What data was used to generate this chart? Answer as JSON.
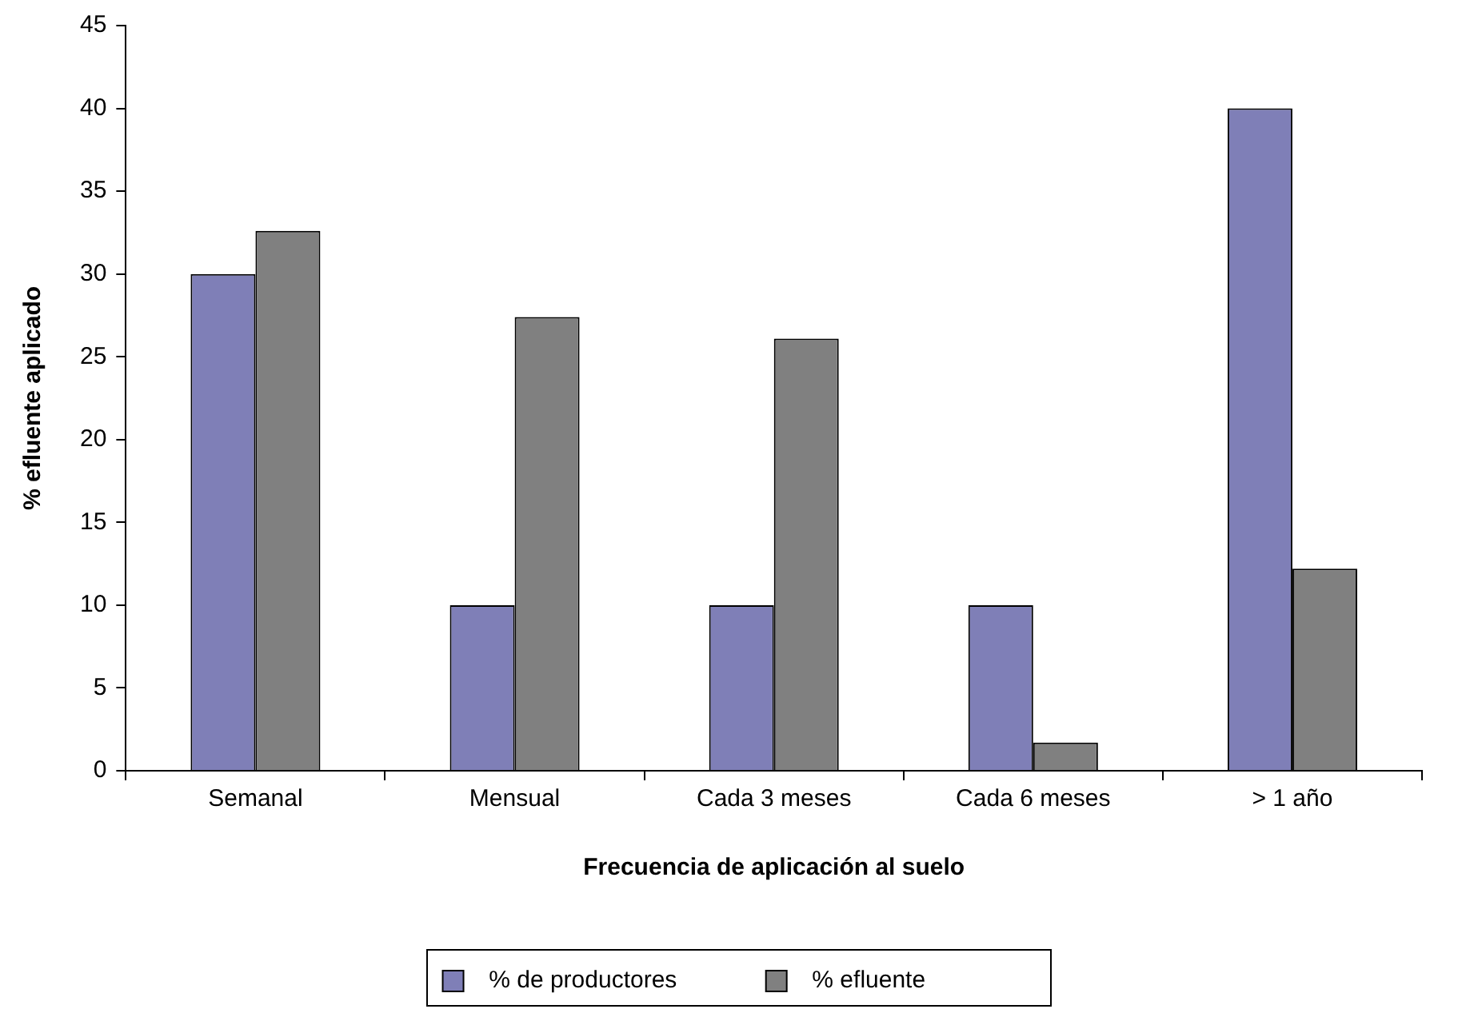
{
  "chart_data": {
    "type": "bar",
    "xlabel": "Frecuencia de aplicación al suelo",
    "ylabel": "% efluente aplicado",
    "categories": [
      "Semanal",
      "Mensual",
      "Cada 3 meses",
      "Cada 6 meses",
      "> 1 año"
    ],
    "series": [
      {
        "name": "% de productores",
        "color": "#7f7fb7",
        "values": [
          30,
          10,
          10,
          10,
          40
        ]
      },
      {
        "name": "% efluente",
        "color": "#808080",
        "values": [
          32.6,
          27.4,
          26.1,
          1.7,
          12.2
        ]
      }
    ],
    "ylim": [
      0,
      45
    ],
    "yticks": [
      0,
      5,
      10,
      15,
      20,
      25,
      30,
      35,
      40,
      45
    ],
    "grid": false,
    "legend": "bottom"
  }
}
